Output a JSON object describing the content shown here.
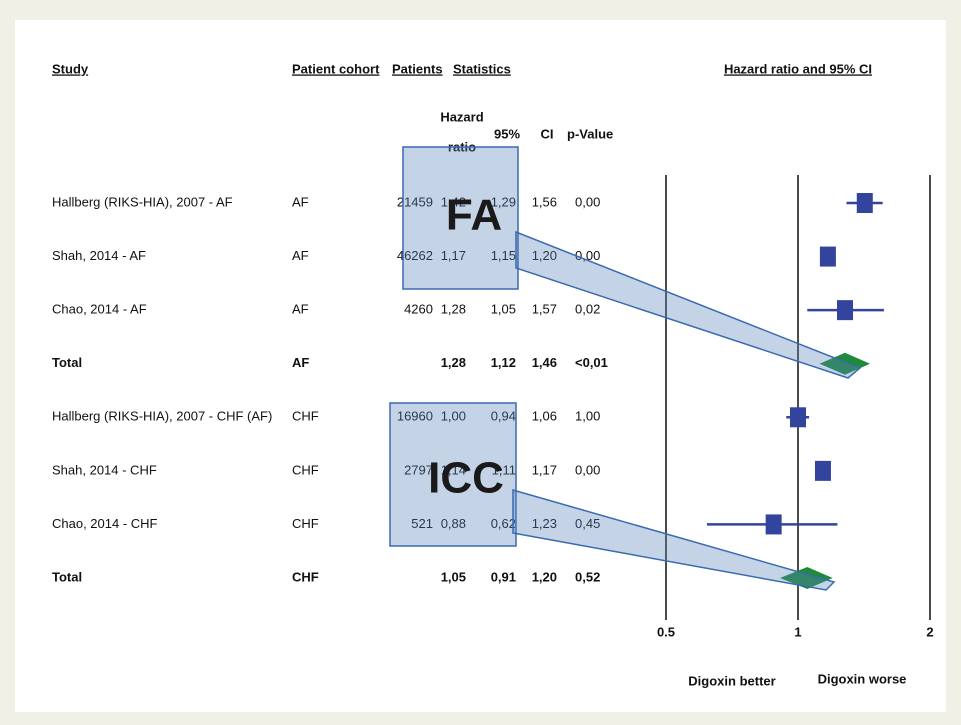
{
  "chart_data": {
    "type": "forest",
    "headers": {
      "study": "Study",
      "cohort": "Patient cohort",
      "patients": "Patients",
      "statistics": "Statistics",
      "hazard_ratio": [
        "Hazard",
        "ratio"
      ],
      "ci95": "95%",
      "ci": "CI",
      "p_value": "p-Value",
      "plot": "Hazard ratio and 95% CI"
    },
    "rows": [
      {
        "study": "Hallberg (RIKS-HIA), 2007 - AF",
        "cohort": "AF",
        "patients": 21459,
        "hr": 1.42,
        "hr_label": "1,42",
        "ci_low": 1.29,
        "ci_low_label": "1,29",
        "ci_high": 1.56,
        "ci_high_label": "1,56",
        "p_value": "0,00",
        "total": false
      },
      {
        "study": "Shah, 2014 - AF",
        "cohort": "AF",
        "patients": 46262,
        "hr": 1.17,
        "hr_label": "1,17",
        "ci_low": 1.15,
        "ci_low_label": "1,15",
        "ci_high": 1.2,
        "ci_high_label": "1,20",
        "p_value": "0,00",
        "total": false
      },
      {
        "study": "Chao, 2014 - AF",
        "cohort": "AF",
        "patients": 4260,
        "hr": 1.28,
        "hr_label": "1,28",
        "ci_low": 1.05,
        "ci_low_label": "1,05",
        "ci_high": 1.57,
        "ci_high_label": "1,57",
        "p_value": "0,02",
        "total": false
      },
      {
        "study": "Total",
        "cohort": "AF",
        "hr": 1.28,
        "hr_label": "1,28",
        "ci_low": 1.12,
        "ci_low_label": "1,12",
        "ci_high": 1.46,
        "ci_high_label": "1,46",
        "p_value": "<0,01",
        "total": true
      },
      {
        "study": "Hallberg (RIKS-HIA), 2007 - CHF (AF)",
        "cohort": "CHF",
        "patients": 16960,
        "hr": 1.0,
        "hr_label": "1,00",
        "ci_low": 0.94,
        "ci_low_label": "0,94",
        "ci_high": 1.06,
        "ci_high_label": "1,06",
        "p_value": "1,00",
        "total": false
      },
      {
        "study": "Shah, 2014 - CHF",
        "cohort": "CHF",
        "patients": 2797,
        "hr": 1.14,
        "hr_label": "1,14",
        "ci_low": 1.11,
        "ci_low_label": "1,11",
        "ci_high": 1.17,
        "ci_high_label": "1,17",
        "p_value": "0,00",
        "total": false
      },
      {
        "study": "Chao, 2014 - CHF",
        "cohort": "CHF",
        "patients": 521,
        "hr": 0.88,
        "hr_label": "0,88",
        "ci_low": 0.62,
        "ci_low_label": "0,62",
        "ci_high": 1.23,
        "ci_high_label": "1,23",
        "p_value": "0,45",
        "total": false
      },
      {
        "study": "Total",
        "cohort": "CHF",
        "hr": 1.05,
        "hr_label": "1,05",
        "ci_low": 0.91,
        "ci_low_label": "0,91",
        "ci_high": 1.2,
        "ci_high_label": "1,20",
        "p_value": "0,52",
        "total": true
      }
    ],
    "log_scale": true,
    "xlim": [
      0.5,
      2
    ],
    "xticks": [
      0.5,
      1,
      2
    ],
    "grid": true,
    "square_color": "#33449e",
    "diamond_color": "#1f8a3c",
    "direction_labels": [
      "Digoxin better",
      "Digoxin worse"
    ],
    "annotations": [
      "FA",
      "ICC"
    ]
  }
}
